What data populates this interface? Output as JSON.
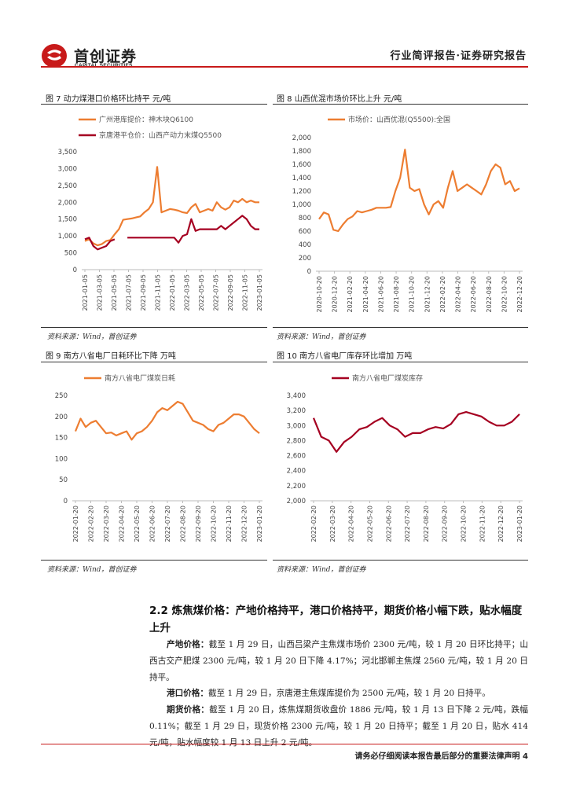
{
  "header": {
    "logo_cn": "首创证券",
    "logo_en": "CAPITAL SECURITIES",
    "report_type": "行业简评报告·证券研究报告"
  },
  "figures": [
    {
      "title": "图 7 动力煤港口价格环比持平 元/吨",
      "source": "资料来源：Wind，首创证券"
    },
    {
      "title": "图 8 山西优混市场价环比上升 元/吨",
      "source": "资料来源：Wind，首创证券"
    },
    {
      "title": "图 9 南方八省电厂日耗环比下降 万吨",
      "source": "资料来源：Wind，首创证券"
    },
    {
      "title": "图 10 南方八省电厂库存环比增加 万吨",
      "source": "资料来源：Wind，首创证券"
    }
  ],
  "chart_data": [
    {
      "type": "line",
      "title": "",
      "series": [
        {
          "name": "广州港库提价：神木块Q6100",
          "color": "#ed7d31",
          "values": [
            850,
            900,
            780,
            720,
            760,
            850,
            880,
            1050,
            1200,
            1480,
            1500,
            1520,
            1550,
            1580,
            1700,
            1800,
            2000,
            3050,
            1700,
            1750,
            1800,
            1780,
            1750,
            1700,
            1680,
            1850,
            1950,
            1700,
            1750,
            1800,
            1750,
            2000,
            1850,
            1780,
            1850,
            2050,
            2000,
            2100,
            2000,
            2050,
            2000,
            2000
          ]
        },
        {
          "name": "京唐港平仓价：山西产动力末煤Q5500",
          "color": "#a50021",
          "values": [
            900,
            950,
            700,
            600,
            650,
            700,
            850,
            900,
            null,
            null,
            950,
            950,
            950,
            950,
            950,
            950,
            950,
            950,
            950,
            950,
            950,
            950,
            800,
            1000,
            1050,
            1500,
            1150,
            1200,
            1200,
            1200,
            1200,
            1200,
            1300,
            1200,
            1300,
            1400,
            1500,
            1600,
            1500,
            1300,
            1200,
            1200
          ]
        }
      ],
      "ylim": [
        0,
        3500
      ],
      "yticks": [
        "0",
        "500",
        "1,000",
        "1,500",
        "2,000",
        "2,500",
        "3,000",
        "3,500"
      ],
      "xticks": [
        "2021-01-05",
        "2021-03-05",
        "2021-05-05",
        "2021-07-05",
        "2021-09-05",
        "2021-11-05",
        "2022-01-05",
        "2022-03-05",
        "2022-05-05",
        "2022-07-05",
        "2022-09-05",
        "2022-11-05",
        "2023-01-05"
      ]
    },
    {
      "type": "line",
      "series": [
        {
          "name": "市场价：山西优混(Q5500):全国",
          "color": "#ed7d31",
          "values": [
            780,
            880,
            850,
            620,
            600,
            700,
            780,
            820,
            900,
            880,
            900,
            920,
            950,
            950,
            950,
            960,
            1200,
            1400,
            1820,
            1250,
            1200,
            1230,
            1000,
            850,
            1000,
            1050,
            950,
            1250,
            1500,
            1200,
            1250,
            1300,
            1250,
            1200,
            1150,
            1300,
            1500,
            1600,
            1550,
            1300,
            1350,
            1200,
            1240
          ]
        }
      ],
      "ylim": [
        0,
        2000
      ],
      "yticks": [
        "0",
        "200",
        "400",
        "600",
        "800",
        "1,000",
        "1,200",
        "1,400",
        "1,600",
        "1,800",
        "2,000"
      ],
      "xticks": [
        "2020-10-20",
        "2020-12-20",
        "2021-02-20",
        "2021-04-20",
        "2021-06-20",
        "2021-08-20",
        "2021-10-20",
        "2021-12-20",
        "2022-02-20",
        "2022-04-20",
        "2022-06-20",
        "2022-08-20",
        "2022-10-20",
        "2022-12-20"
      ]
    },
    {
      "type": "line",
      "series": [
        {
          "name": "南方八省电厂煤炭日耗",
          "color": "#ed7d31",
          "values": [
            165,
            195,
            175,
            185,
            190,
            175,
            160,
            162,
            155,
            160,
            165,
            145,
            160,
            165,
            175,
            190,
            210,
            220,
            215,
            225,
            235,
            230,
            210,
            190,
            185,
            180,
            170,
            165,
            180,
            185,
            195,
            205,
            205,
            200,
            185,
            170,
            160
          ]
        }
      ],
      "ylim": [
        0,
        250
      ],
      "yticks": [
        "0",
        "50",
        "100",
        "150",
        "200",
        "250"
      ],
      "xticks": [
        "2022-01-20",
        "2022-02-20",
        "2022-03-20",
        "2022-04-20",
        "2022-05-20",
        "2022-06-20",
        "2022-07-20",
        "2022-08-20",
        "2022-09-20",
        "2022-10-20",
        "2022-11-20",
        "2022-12-20",
        "2023-01-20"
      ]
    },
    {
      "type": "line",
      "series": [
        {
          "name": "南方八省电厂煤炭库存",
          "color": "#a50021",
          "values": [
            3100,
            2850,
            2800,
            2650,
            2780,
            2850,
            2950,
            2980,
            3050,
            3100,
            3000,
            2950,
            2850,
            2900,
            2900,
            2950,
            2980,
            2960,
            3020,
            3150,
            3180,
            3150,
            3120,
            3050,
            3000,
            3000,
            3050,
            3150
          ]
        }
      ],
      "ylim": [
        2000,
        3400
      ],
      "yticks": [
        "2,000",
        "2,200",
        "2,400",
        "2,600",
        "2,800",
        "3,000",
        "3,200",
        "3,400"
      ],
      "xticks": [
        "2022-02-20",
        "2022-03-20",
        "2022-04-20",
        "2022-05-20",
        "2022-06-20",
        "2022-07-20",
        "2022-08-20",
        "2022-09-20",
        "2022-10-20",
        "2022-11-20",
        "2022-12-20",
        "2023-01-20"
      ]
    }
  ],
  "section": {
    "title": "2.2 炼焦煤价格：产地价格持平，港口价格持平，期货价格小幅下跌，贴水幅度上升",
    "p1_label": "产地价格：",
    "p1_text": "截至 1 月 29 日，山西吕梁产主焦煤市场价 2300 元/吨，较 1 月 20 日环比持平；山西古交产肥煤 2300 元/吨，较 1 月 20 日下降 4.17%；河北邯郸主焦煤 2560 元/吨，较 1 月 20 日持平。",
    "p2_label": "港口价格：",
    "p2_text": "截至 1 月 29 日，京唐港主焦煤库提价为 2500 元/吨，较 1 月 20 日持平。",
    "p3_label": "期货价格：",
    "p3_text": "截至 1 月 20 日，炼焦煤期货收盘价 1886 元/吨，较 1 月 13 日下降 2 元/吨，跌幅 0.11%；截至 1 月 29 日，现货价格 2300 元/吨，较 1 月 20 日持平；截至 1 月 20 日，贴水 414 元/吨，贴水幅度较 1 月 13 日上升 2 元/吨。"
  },
  "footer": {
    "disclaimer": "请务必仔细阅读本报告最后部分的重要法律声明",
    "page": "4"
  },
  "colors": {
    "orange": "#ed7d31",
    "darkred": "#a50021",
    "brand_red": "#c81a1a"
  }
}
